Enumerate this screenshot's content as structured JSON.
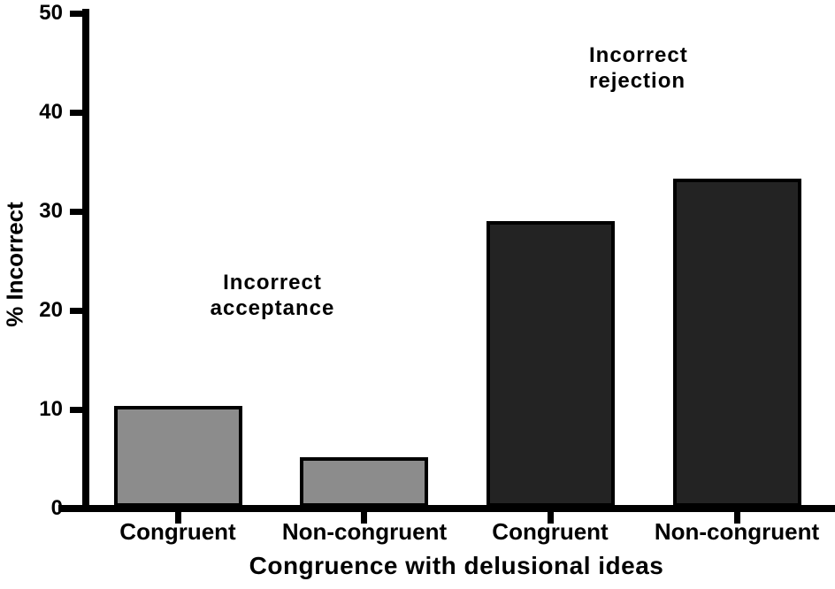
{
  "chart_data": {
    "type": "bar",
    "xlabel": "Congruence with delusional ideas",
    "ylabel": "% Incorrect",
    "ylim": [
      0,
      50
    ],
    "yticks": [
      0,
      10,
      20,
      30,
      40,
      50
    ],
    "grid": false,
    "legend_position": "none",
    "categories": [
      "Congruent",
      "Non-congruent",
      "Congruent",
      "Non-congruent"
    ],
    "groups": [
      {
        "name": "Incorrect acceptance",
        "color": "#8c8c8c"
      },
      {
        "name": "Incorrect rejection",
        "color": "#232323"
      }
    ],
    "bars": [
      {
        "category": "Congruent",
        "group": "Incorrect acceptance",
        "value": 10.2,
        "color": "#8c8c8c"
      },
      {
        "category": "Non-congruent",
        "group": "Incorrect acceptance",
        "value": 5.0,
        "color": "#8c8c8c"
      },
      {
        "category": "Congruent",
        "group": "Incorrect rejection",
        "value": 28.8,
        "color": "#232323"
      },
      {
        "category": "Non-congruent",
        "group": "Incorrect rejection",
        "value": 33.1,
        "color": "#232323"
      }
    ],
    "bar_border_color": "#000000",
    "axis_color": "#000000",
    "annotations": {
      "acceptance": {
        "text": "Incorrect\nacceptance"
      },
      "rejection": {
        "text": "Incorrect\nrejection"
      }
    }
  }
}
